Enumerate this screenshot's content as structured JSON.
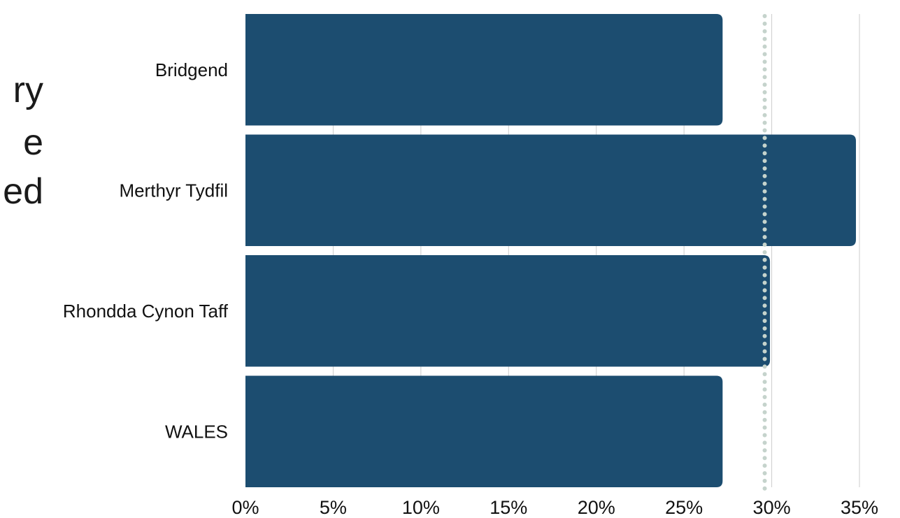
{
  "side_text_fragments": [
    "ry",
    "e",
    "ed"
  ],
  "chart_data": {
    "type": "bar",
    "orientation": "horizontal",
    "categories": [
      "Bridgend",
      "Merthyr Tydfil",
      "Rhondda Cynon Taff",
      "WALES"
    ],
    "values": [
      27.2,
      34.8,
      29.9,
      27.2
    ],
    "value_unit": "%",
    "xlim": [
      0,
      35
    ],
    "xticks": [
      0,
      5,
      10,
      15,
      20,
      25,
      30,
      35
    ],
    "xtick_labels": [
      "0%",
      "5%",
      "10%",
      "15%",
      "20%",
      "25%",
      "30%",
      "35%"
    ],
    "reference_line": {
      "value": 29.6,
      "style": "dotted"
    },
    "grid": true,
    "legend": "none",
    "title": "",
    "xlabel": "",
    "ylabel": ""
  },
  "colors": {
    "bar": "#1c4d70",
    "reference_line": "#c5d3cc",
    "grid": "#cccccc"
  }
}
